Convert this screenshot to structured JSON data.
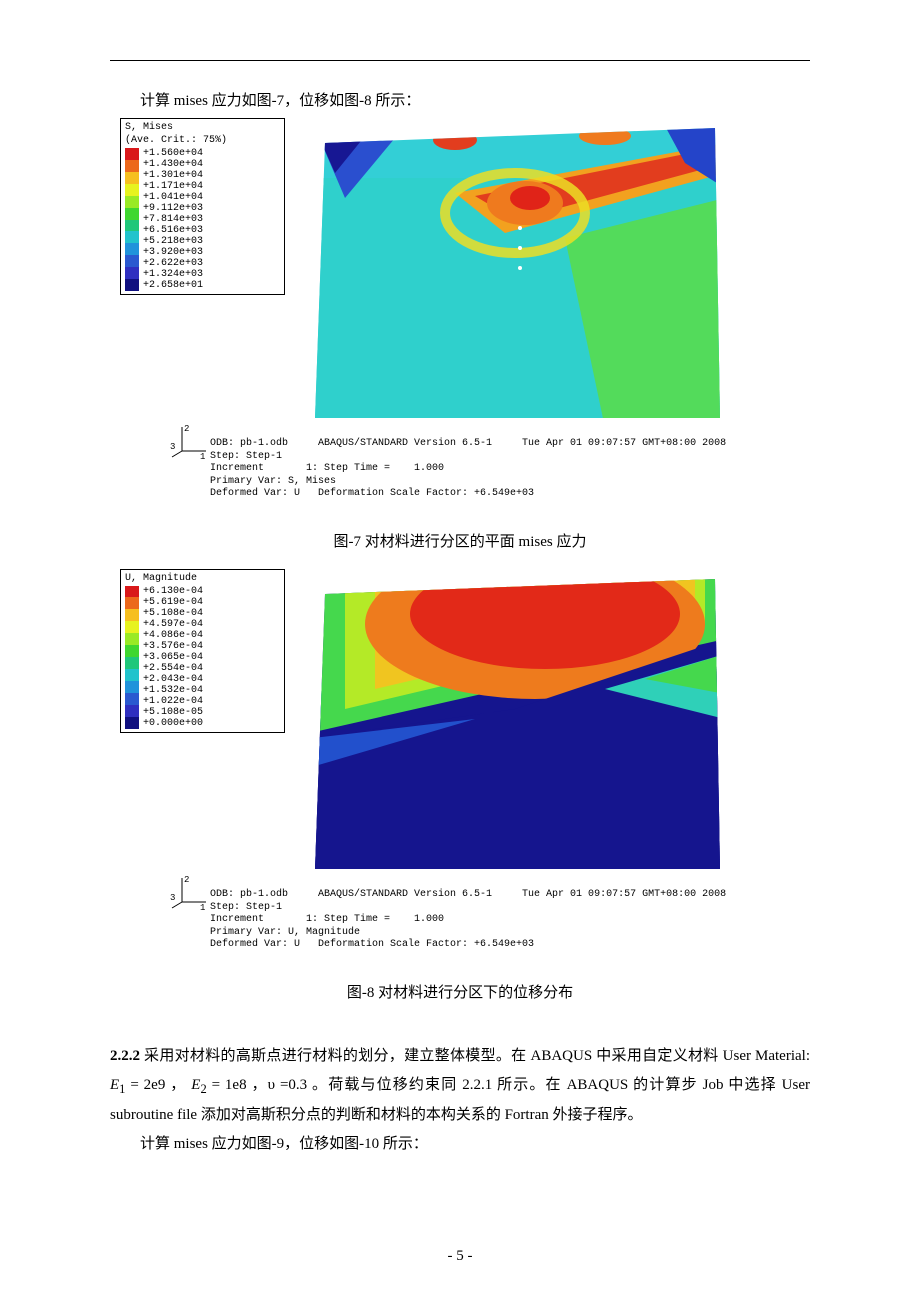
{
  "intro_line": "计算 mises 应力如图-7，位移如图-8 所示：",
  "legend_colors": [
    "#d9181a",
    "#ec681b",
    "#f6bf1f",
    "#e7f31f",
    "#99ea25",
    "#3fd72f",
    "#1fc77a",
    "#21c3cc",
    "#2093db",
    "#2a59d0",
    "#2f2fc0",
    "#101080"
  ],
  "fig7": {
    "legend_title": "S, Mises",
    "legend_sub": "(Ave. Crit.: 75%)",
    "values": [
      "+1.560e+04",
      "+1.430e+04",
      "+1.301e+04",
      "+1.171e+04",
      "+1.041e+04",
      "+9.112e+03",
      "+7.814e+03",
      "+6.516e+03",
      "+5.218e+03",
      "+3.920e+03",
      "+2.622e+03",
      "+1.324e+03",
      "+2.658e+01"
    ],
    "odb_line": "ODB: pb-1.odb     ABAQUS/STANDARD Version 6.5-1     Tue Apr 01 09:07:57 GMT+08:00 2008",
    "step_line": "Step: Step-1",
    "inc_line": "Increment       1: Step Time =    1.000",
    "pv_line": "Primary Var: S, Mises",
    "dv_line": "Deformed Var: U   Deformation Scale Factor: +6.549e+03",
    "caption": "图-7 对材料进行分区的平面 mises 应力"
  },
  "fig8": {
    "legend_title": "U, Magnitude",
    "legend_sub": "",
    "values": [
      "+6.130e-04",
      "+5.619e-04",
      "+5.108e-04",
      "+4.597e-04",
      "+4.086e-04",
      "+3.576e-04",
      "+3.065e-04",
      "+2.554e-04",
      "+2.043e-04",
      "+1.532e-04",
      "+1.022e-04",
      "+5.108e-05",
      "+0.000e+00"
    ],
    "odb_line": "ODB: pb-1.odb     ABAQUS/STANDARD Version 6.5-1     Tue Apr 01 09:07:57 GMT+08:00 2008",
    "step_line": "Step: Step-1",
    "inc_line": "Increment       1: Step Time =    1.000",
    "pv_line": "Primary Var: U, Magnitude",
    "dv_line": "Deformed Var: U   Deformation Scale Factor: +6.549e+03",
    "caption": "图-8 对材料进行分区下的位移分布"
  },
  "section": {
    "heading_num": "2.2.2",
    "para1_a": " 采用对材料的高斯点进行材料的划分，建立整体模型。在 ABAQUS 中采用自定义材料 User Material: ",
    "E1_sym": "E",
    "E1_sub": "1",
    "E1_eq": " = 2e9 ，   ",
    "E2_sym": "E",
    "E2_sub": "2",
    "E2_eq": " = 1e8 ，",
    "nu_sym": "υ",
    "nu_eq": " =0.3 。",
    "para1_b": "荷载与位移约束同 2.2.1 所示。在 ABAQUS 的计算步 Job 中选择 User subroutine file 添加对高斯积分点的判断和材料的本构关系的 Fortran 外接子程序。",
    "para2": "计算 mises 应力如图-9，位移如图-10 所示："
  },
  "page_number": "- 5 -"
}
